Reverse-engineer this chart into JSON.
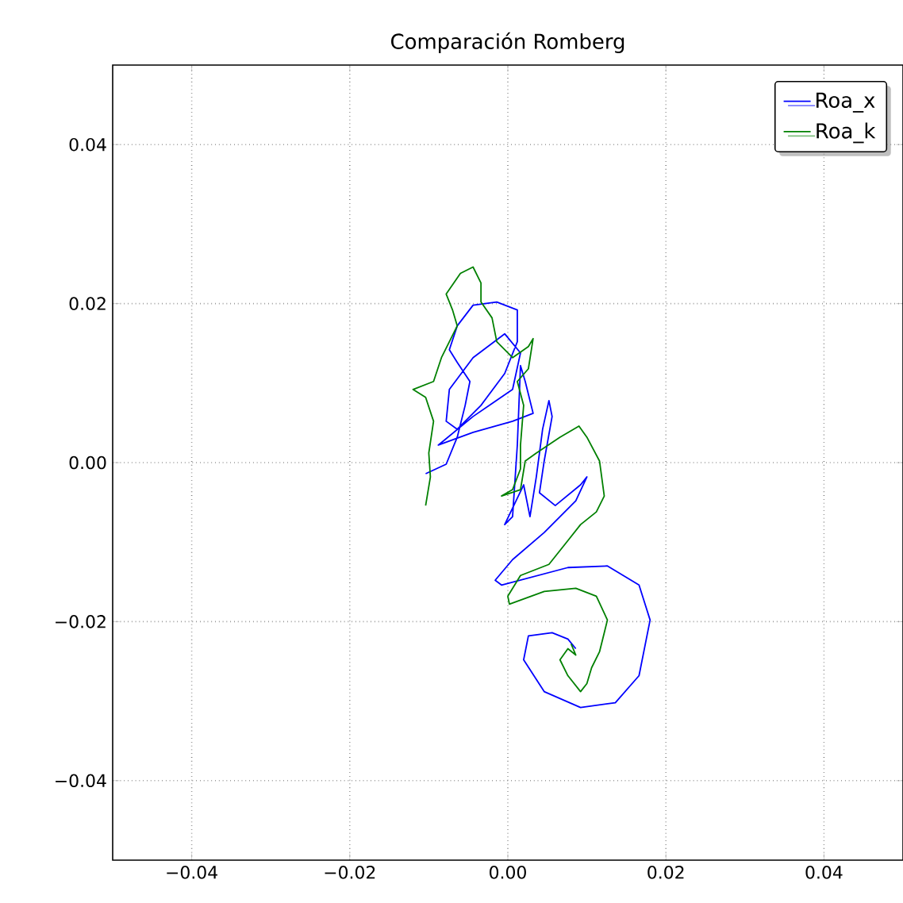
{
  "chart_data": {
    "type": "line",
    "title": "Comparación Romberg",
    "xlim": [
      -0.05,
      0.05
    ],
    "ylim": [
      -0.05,
      0.05
    ],
    "xticks": [
      {
        "value": -0.04,
        "label": "−0.04"
      },
      {
        "value": -0.02,
        "label": "−0.02"
      },
      {
        "value": 0,
        "label": "0.00"
      },
      {
        "value": 0.02,
        "label": "0.02"
      },
      {
        "value": 0.04,
        "label": "0.04"
      }
    ],
    "yticks": [
      {
        "value": -0.04,
        "label": "−0.04"
      },
      {
        "value": -0.02,
        "label": "−0.02"
      },
      {
        "value": 0,
        "label": "0.00"
      },
      {
        "value": 0.02,
        "label": "0.02"
      },
      {
        "value": 0.04,
        "label": "0.04"
      }
    ],
    "grid": true,
    "legend": "top right",
    "line_style": "solid",
    "marker": "none",
    "series": [
      {
        "name": "Roa_x",
        "color": "#0000ff",
        "x": [
          -0.0104,
          -0.0078,
          -0.0064,
          -0.0054,
          -0.0048,
          -0.0064,
          -0.0074,
          -0.0064,
          -0.0044,
          -0.0014,
          0.0012,
          0.0012,
          -0.0004,
          -0.0034,
          -0.0064,
          -0.0078,
          -0.0074,
          -0.0044,
          -0.0004,
          0.0016,
          0.0006,
          -0.0044,
          -0.0088,
          -0.0044,
          0.0006,
          0.0032,
          0.0022,
          0.0016,
          0.0012,
          0.0006,
          -0.0004,
          0.002,
          0.0028,
          0.0036,
          0.0044,
          0.0052,
          0.0056,
          0.0046,
          0.004,
          0.006,
          0.0092,
          0.01,
          0.0086,
          0.0046,
          0.0006,
          -0.0016,
          -0.0008,
          0.0076,
          0.0126,
          0.0166,
          0.018,
          0.0166,
          0.0136,
          0.0092,
          0.0046,
          0.002,
          0.0026,
          0.0056,
          0.0076,
          0.0086
        ],
        "values": [
          -0.0014,
          -0.0002,
          0.0032,
          0.0072,
          0.0102,
          0.0126,
          0.0142,
          0.0172,
          0.0198,
          0.0202,
          0.0192,
          0.0152,
          0.0112,
          0.0072,
          0.0042,
          0.0052,
          0.0092,
          0.0132,
          0.0162,
          0.0138,
          0.0092,
          0.0058,
          0.0022,
          0.0038,
          0.0052,
          0.0062,
          0.0102,
          0.0122,
          0.0022,
          -0.0068,
          -0.0078,
          -0.0028,
          -0.0068,
          -0.0018,
          0.0042,
          0.0078,
          0.0058,
          0.0002,
          -0.0038,
          -0.0054,
          -0.0028,
          -0.0018,
          -0.0048,
          -0.0088,
          -0.0122,
          -0.0148,
          -0.0154,
          -0.0132,
          -0.013,
          -0.0154,
          -0.0198,
          -0.0268,
          -0.0302,
          -0.0308,
          -0.0288,
          -0.0248,
          -0.0218,
          -0.0214,
          -0.0222,
          -0.0234
        ]
      },
      {
        "name": "Roa_k",
        "color": "#008000",
        "x": [
          -0.0104,
          -0.0098,
          -0.01,
          -0.0094,
          -0.0104,
          -0.012,
          -0.0094,
          -0.0084,
          -0.0064,
          -0.007,
          -0.0078,
          -0.006,
          -0.0044,
          -0.0034,
          -0.0034,
          -0.002,
          -0.0014,
          0.0006,
          0.0026,
          0.0032,
          0.0026,
          0.0012,
          0.002,
          0.0016,
          0.0016,
          0.0006,
          -0.0008,
          0.0016,
          0.0022,
          0.0036,
          0.0066,
          0.009,
          0.01,
          0.0116,
          0.0122,
          0.0112,
          0.0092,
          0.0076,
          0.0052,
          0.0016,
          0.0,
          0.0002,
          0.0046,
          0.0086,
          0.0112,
          0.0126,
          0.0116,
          0.0106,
          0.01,
          0.0092,
          0.0076,
          0.0066,
          0.0076,
          0.0086,
          0.008
        ],
        "values": [
          -0.0054,
          -0.0018,
          0.0012,
          0.0052,
          0.0082,
          0.0092,
          0.0102,
          0.0132,
          0.0172,
          0.0192,
          0.0212,
          0.0238,
          0.0246,
          0.0226,
          0.0202,
          0.0182,
          0.0152,
          0.0132,
          0.0146,
          0.0156,
          0.0118,
          0.0102,
          0.0072,
          0.0022,
          -0.0008,
          -0.0034,
          -0.0042,
          -0.0034,
          0.0002,
          0.0012,
          0.0032,
          0.0046,
          0.0032,
          0.0002,
          -0.0042,
          -0.0062,
          -0.0078,
          -0.0098,
          -0.0128,
          -0.0142,
          -0.0168,
          -0.0178,
          -0.0162,
          -0.0158,
          -0.0168,
          -0.0198,
          -0.0238,
          -0.0258,
          -0.0278,
          -0.0288,
          -0.0268,
          -0.0248,
          -0.0234,
          -0.0242,
          -0.0228
        ]
      }
    ]
  }
}
